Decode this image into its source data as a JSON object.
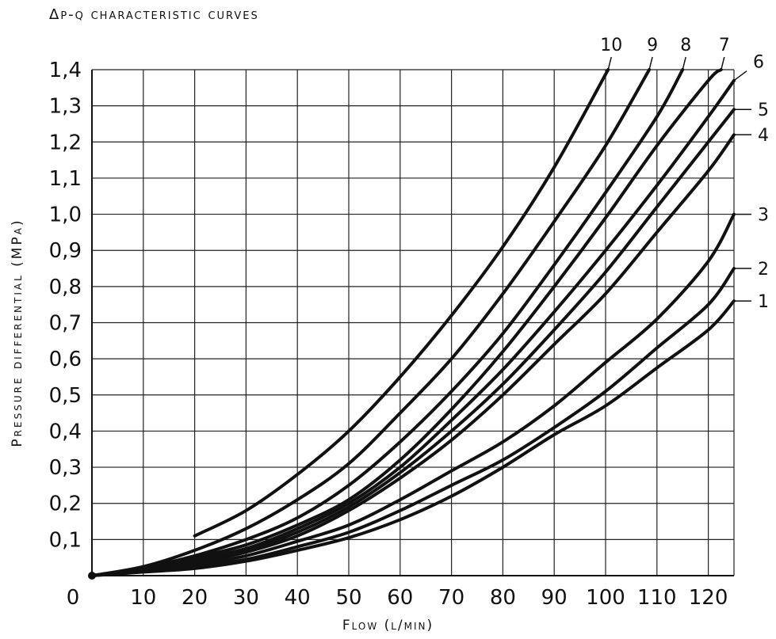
{
  "chart_data": {
    "type": "line",
    "title": "Δp-q characteristic curves",
    "xlabel": "Flow (l/min)",
    "ylabel": "Pressure differential (MPa)",
    "xlim": [
      0,
      125
    ],
    "ylim": [
      0,
      1.4
    ],
    "grid": true,
    "x_ticks": [
      "0",
      "10",
      "20",
      "30",
      "40",
      "50",
      "60",
      "70",
      "80",
      "90",
      "100",
      "110",
      "120"
    ],
    "y_ticks": [
      "0,1",
      "0,2",
      "0,3",
      "0,4",
      "0,5",
      "0,6",
      "0,7",
      "0,8",
      "0,9",
      "1,0",
      "1,1",
      "1,2",
      "1,3",
      "1,4"
    ],
    "series": [
      {
        "name": "1",
        "x": [
          0,
          10,
          20,
          30,
          40,
          50,
          60,
          70,
          80,
          90,
          100,
          110,
          120,
          125
        ],
        "y": [
          0,
          0.01,
          0.02,
          0.04,
          0.07,
          0.105,
          0.155,
          0.22,
          0.3,
          0.39,
          0.47,
          0.575,
          0.68,
          0.76
        ]
      },
      {
        "name": "2",
        "x": [
          0,
          10,
          20,
          30,
          40,
          50,
          60,
          70,
          80,
          90,
          100,
          110,
          120,
          125
        ],
        "y": [
          0,
          0.012,
          0.025,
          0.045,
          0.08,
          0.12,
          0.18,
          0.25,
          0.32,
          0.41,
          0.51,
          0.63,
          0.75,
          0.85
        ]
      },
      {
        "name": "3",
        "x": [
          0,
          10,
          20,
          30,
          40,
          50,
          60,
          70,
          80,
          90,
          100,
          110,
          120,
          125
        ],
        "y": [
          0,
          0.015,
          0.03,
          0.055,
          0.095,
          0.14,
          0.21,
          0.29,
          0.37,
          0.47,
          0.59,
          0.71,
          0.87,
          1.0
        ]
      },
      {
        "name": "4",
        "x": [
          0,
          10,
          20,
          30,
          40,
          50,
          60,
          70,
          80,
          90,
          100,
          110,
          120,
          125
        ],
        "y": [
          0,
          0.015,
          0.035,
          0.065,
          0.11,
          0.18,
          0.27,
          0.375,
          0.5,
          0.64,
          0.78,
          0.95,
          1.12,
          1.22
        ]
      },
      {
        "name": "5",
        "x": [
          0,
          10,
          20,
          30,
          40,
          50,
          60,
          70,
          80,
          90,
          100,
          110,
          120,
          125
        ],
        "y": [
          0,
          0.018,
          0.04,
          0.07,
          0.12,
          0.19,
          0.285,
          0.4,
          0.53,
          0.68,
          0.84,
          1.02,
          1.2,
          1.29
        ]
      },
      {
        "name": "6",
        "x": [
          0,
          10,
          20,
          30,
          40,
          50,
          60,
          70,
          80,
          90,
          100,
          110,
          120,
          125
        ],
        "y": [
          0,
          0.02,
          0.045,
          0.075,
          0.13,
          0.2,
          0.3,
          0.43,
          0.57,
          0.73,
          0.9,
          1.08,
          1.27,
          1.37
        ]
      },
      {
        "name": "7",
        "x": [
          0,
          10,
          20,
          30,
          40,
          50,
          60,
          70,
          80,
          90,
          100,
          110,
          120,
          122.5
        ],
        "y": [
          0,
          0.02,
          0.05,
          0.085,
          0.14,
          0.21,
          0.32,
          0.46,
          0.62,
          0.8,
          0.99,
          1.19,
          1.37,
          1.4
        ]
      },
      {
        "name": "8",
        "x": [
          0,
          10,
          20,
          30,
          40,
          50,
          60,
          70,
          80,
          90,
          100,
          110,
          115
        ],
        "y": [
          0,
          0.022,
          0.055,
          0.1,
          0.16,
          0.25,
          0.37,
          0.51,
          0.67,
          0.86,
          1.06,
          1.27,
          1.4
        ]
      },
      {
        "name": "9",
        "x": [
          0,
          10,
          20,
          30,
          40,
          50,
          60,
          70,
          80,
          90,
          100,
          108.5
        ],
        "y": [
          0,
          0.025,
          0.07,
          0.13,
          0.21,
          0.31,
          0.45,
          0.6,
          0.78,
          0.98,
          1.19,
          1.4
        ]
      },
      {
        "name": "10",
        "x": [
          20,
          30,
          40,
          50,
          60,
          70,
          80,
          90,
          100.5
        ],
        "y": [
          0.11,
          0.18,
          0.28,
          0.4,
          0.55,
          0.72,
          0.91,
          1.13,
          1.4
        ]
      }
    ]
  }
}
